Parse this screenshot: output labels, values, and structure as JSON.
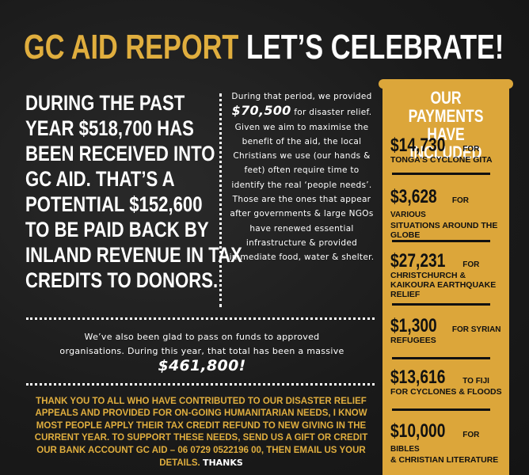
{
  "title": {
    "part1": "GC AID REPORT",
    "part2": "LET’S CELEBRATE!"
  },
  "main_lines": [
    "DURING THE PAST",
    "YEAR $518,700 HAS",
    "BEEN RECEIVED INTO",
    "GC AID.  THAT’S A",
    "POTENTIAL $152,600",
    "TO BE PAID BACK BY",
    "INLAND REVENUE IN TAX",
    "CREDITS TO DONORS."
  ],
  "hand_para": {
    "pre": "During that period, we provided",
    "amount": "$70,500",
    "post": "for disaster relief.  Given we aim to maximise the benefit of the aid, the local Christians we use (our hands & feet) often require time to identify the real ‘people needs’. Those are the ones that appear after governments & large NGOs have renewed essential infrastructure & provided immediate food, water & shelter."
  },
  "hand2": {
    "pre": "We’ve also been glad to pass on funds to approved organisations.  During this year, that total has been a massive",
    "amount": "$461,800!"
  },
  "thanks": {
    "text": "THANK YOU TO ALL WHO HAVE CONTRIBUTED TO OUR DISASTER RELIEF APPEALS AND PROVIDED FOR ON-GOING HUMANITARIAN NEEDS, I KNOW MOST PEOPLE APPLY THEIR TAX CREDIT REFUND TO NEW GIVING IN THE CURRENT YEAR.  TO SUPPORT THESE NEEDS, SEND US A GIFT OR CREDIT OUR BANK ACCOUNT GC AID – 06 0729 0522196 00, THEN EMAIL US YOUR DETAILS.",
    "sign": "Thanks"
  },
  "panel": {
    "title_line1": "OUR PAYMENTS",
    "title_line2": "HAVE INCLUDED",
    "payments": [
      {
        "amount": "$14,730",
        "for": "FOR",
        "desc": "TONGA’S CYCLONE GITA"
      },
      {
        "amount": "$3,628",
        "for": "FOR VARIOUS",
        "desc": "SITUATIONS AROUND THE GLOBE"
      },
      {
        "amount": "$27,231",
        "for": "FOR",
        "desc": "CHRISTCHURCH & KAIKOURA EARTHQUAKE RELIEF"
      },
      {
        "amount": "$1,300",
        "for": "FOR SYRIAN",
        "desc": "REFUGEES"
      },
      {
        "amount": "$13,616",
        "for": "TO FIJI",
        "desc": "FOR CYCLONES & FLOODS"
      },
      {
        "amount": "$10,000",
        "for": "FOR BIBLES",
        "desc": "& CHRISTIAN LITERATURE"
      }
    ]
  },
  "colors": {
    "gold": "#e0ae3e",
    "panel": "#dca63a",
    "background": "#1c1c1c"
  }
}
